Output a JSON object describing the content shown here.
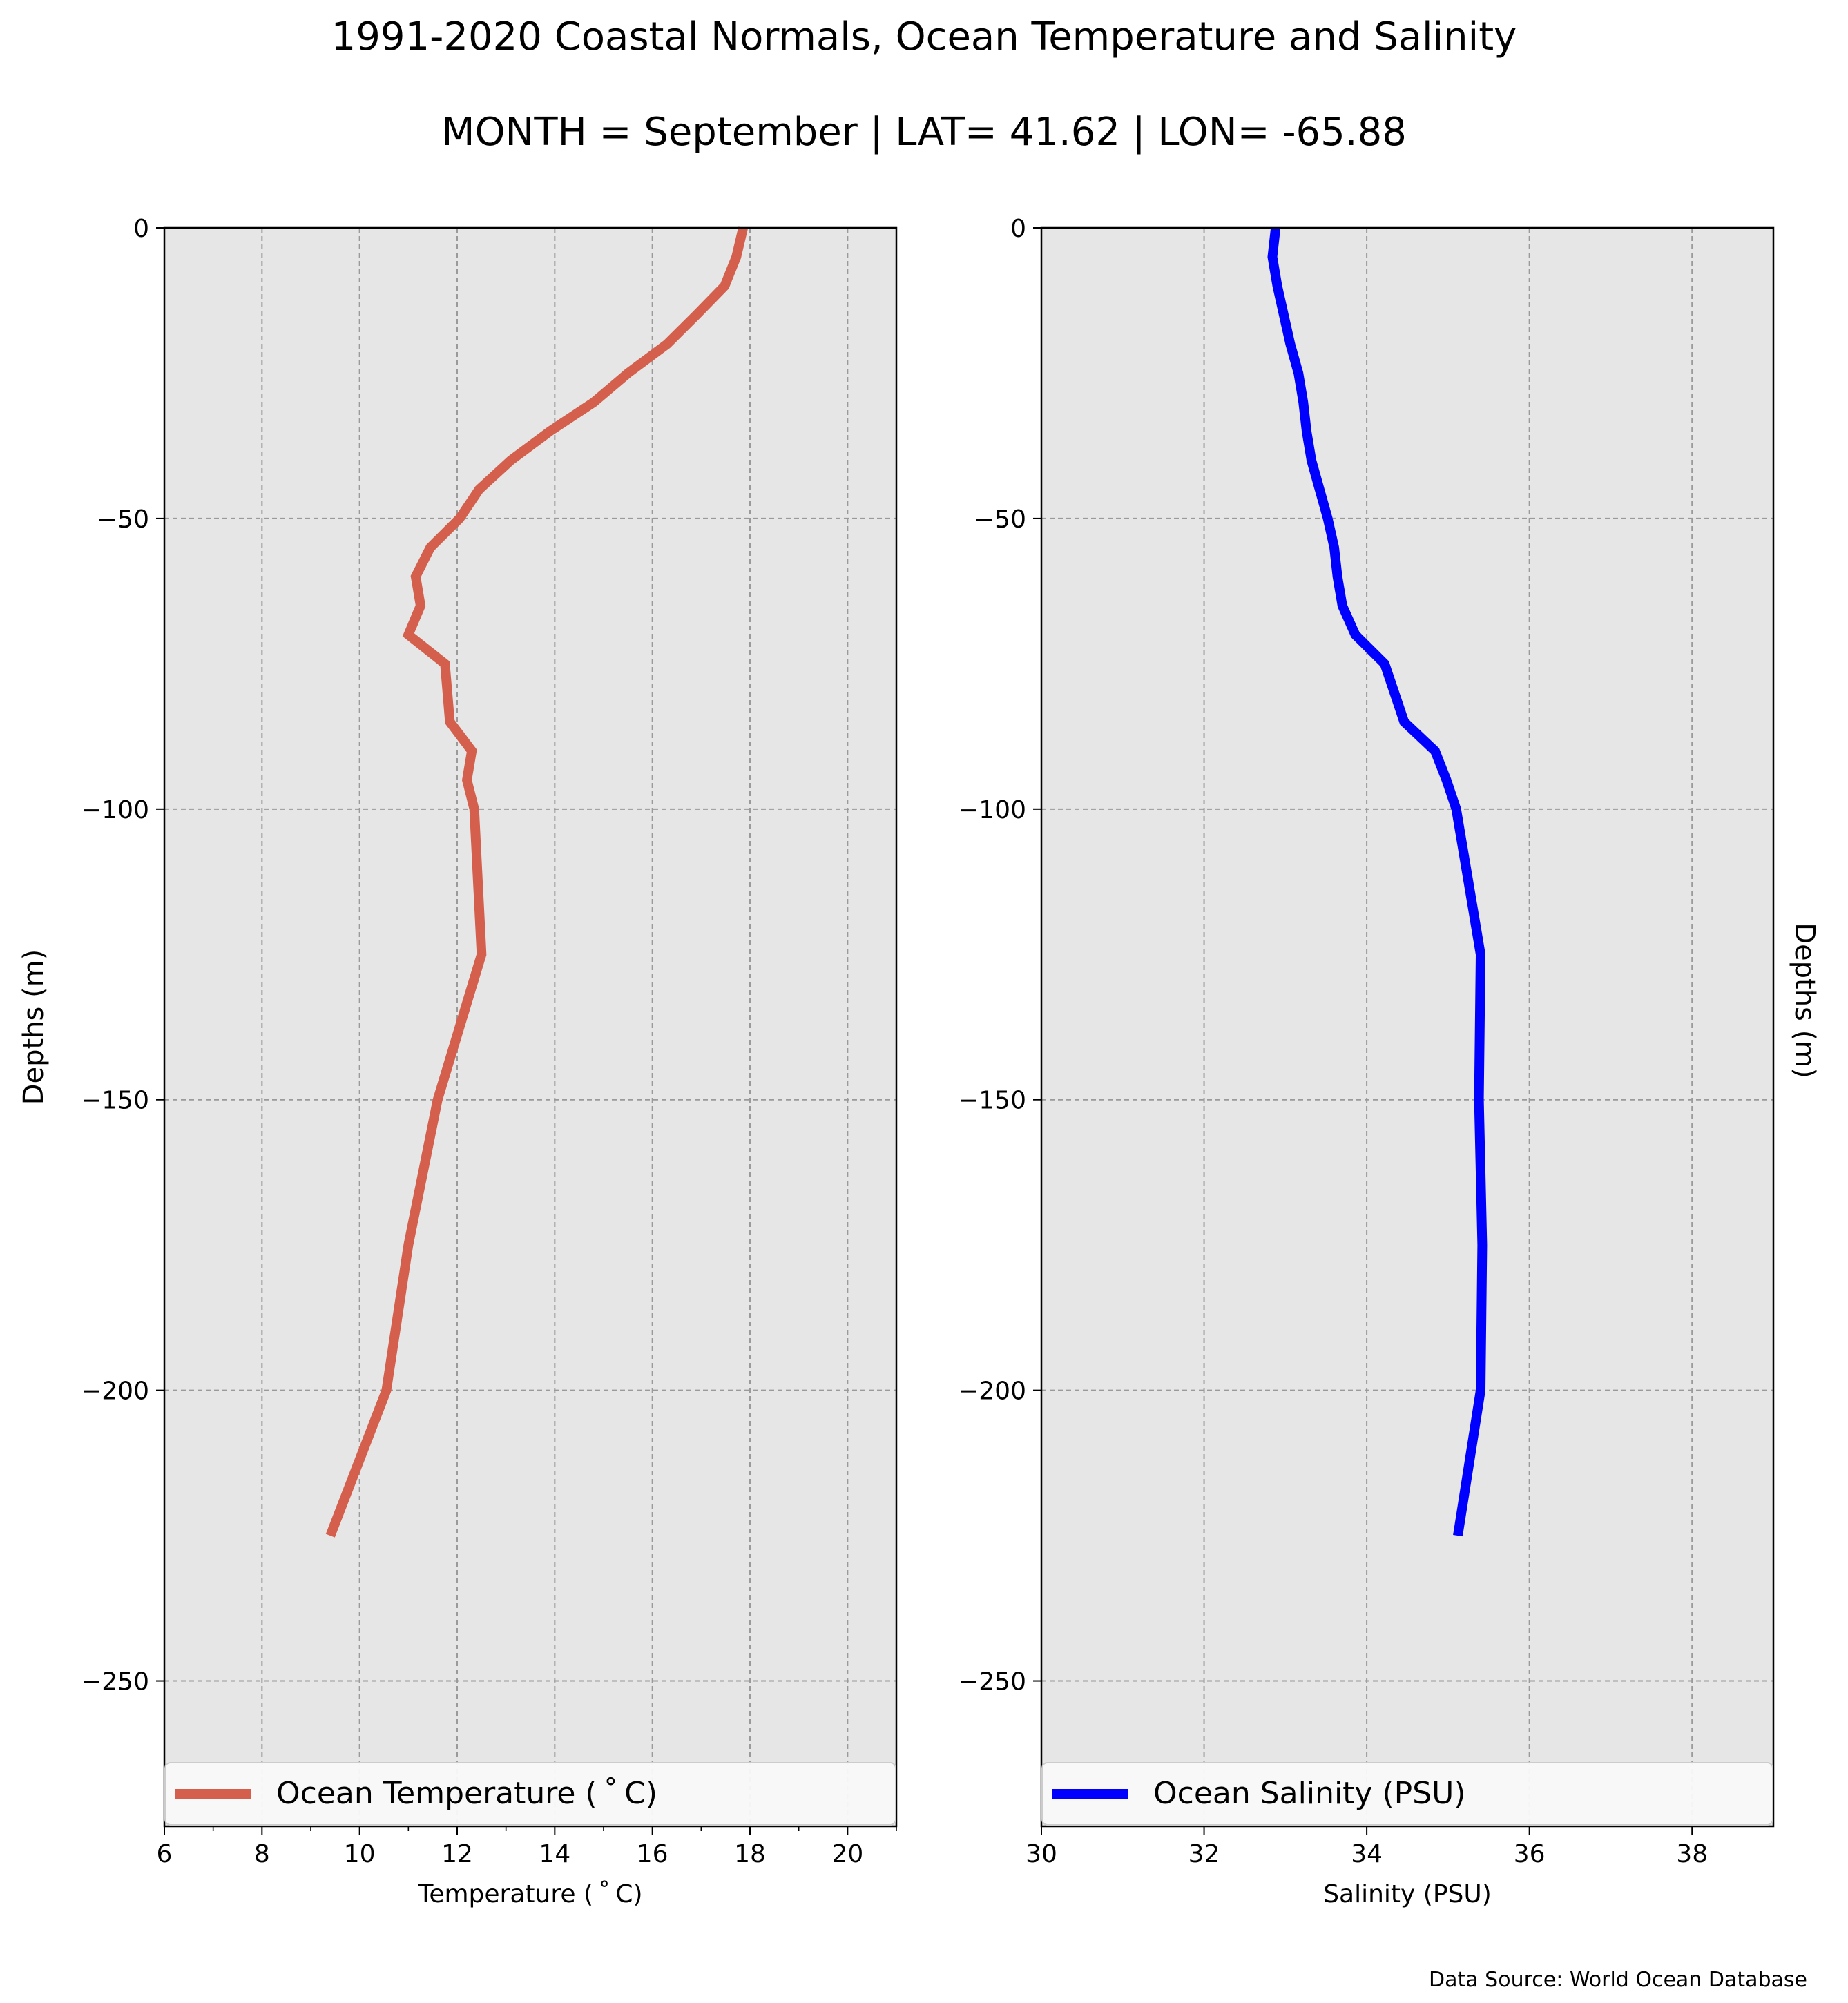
{
  "title": "1991-2020 Coastal Normals, Ocean Temperature and Salinity",
  "subtitle": "MONTH = September | LAT= 41.62 | LON= -65.88",
  "source_note": "Data Source: World Ocean Database",
  "colors": {
    "temperature": "#d35f4c",
    "salinity": "#0000ff",
    "axes_bg": "#e6e6e6",
    "grid": "#9a9a9a"
  },
  "chart_data": [
    {
      "type": "line",
      "xlabel": "Temperature ($^\\circ$C)",
      "xlabel_display": "Temperature ( ˚ C)",
      "ylabel": "Depths (m)",
      "xlim": [
        6,
        21
      ],
      "ylim": [
        -275,
        0
      ],
      "xticks": [
        6,
        8,
        10,
        12,
        14,
        16,
        18,
        20
      ],
      "yticks": [
        0,
        -50,
        -100,
        -150,
        -200,
        -250
      ],
      "ytick_labels": [
        "0",
        "−50",
        "−100",
        "−150",
        "−200",
        "−250"
      ],
      "grid": true,
      "legend_position": "bottom",
      "series": [
        {
          "name": "Ocean Temperature ( ˚ C)",
          "x": [
            17.86,
            17.72,
            17.48,
            16.9,
            16.3,
            15.5,
            14.8,
            13.9,
            13.1,
            12.45,
            12.05,
            11.45,
            11.15,
            11.25,
            11.0,
            11.75,
            11.8,
            11.85,
            12.3,
            12.2,
            12.35,
            12.5,
            11.6,
            11.0,
            10.55,
            9.4
          ],
          "y": [
            0,
            -5,
            -10,
            -15,
            -20,
            -25,
            -30,
            -35,
            -40,
            -45,
            -50,
            -55,
            -60,
            -65,
            -70,
            -75,
            -80,
            -85,
            -90,
            -95,
            -100,
            -125,
            -150,
            -175,
            -200,
            -225
          ]
        }
      ]
    },
    {
      "type": "line",
      "xlabel": "Salinity (PSU)",
      "ylabel": "Depths (m)",
      "xlim": [
        30,
        39
      ],
      "ylim": [
        -275,
        0
      ],
      "xticks": [
        30,
        32,
        34,
        36,
        38
      ],
      "yticks": [
        0,
        -50,
        -100,
        -150,
        -200,
        -250
      ],
      "ytick_labels": [
        "0",
        "−50",
        "−100",
        "−150",
        "−200",
        "−250"
      ],
      "grid": true,
      "legend_position": "bottom",
      "series": [
        {
          "name": "Ocean Salinity (PSU)",
          "x": [
            32.88,
            32.84,
            32.9,
            32.98,
            33.06,
            33.16,
            33.22,
            33.26,
            33.32,
            33.42,
            33.52,
            33.6,
            33.64,
            33.7,
            33.86,
            34.22,
            34.34,
            34.46,
            34.84,
            34.98,
            35.1,
            35.4,
            35.38,
            35.42,
            35.4,
            35.12
          ],
          "y": [
            0,
            -5,
            -10,
            -15,
            -20,
            -25,
            -30,
            -35,
            -40,
            -45,
            -50,
            -55,
            -60,
            -65,
            -70,
            -75,
            -80,
            -85,
            -90,
            -95,
            -100,
            -125,
            -150,
            -175,
            -200,
            -225
          ]
        }
      ]
    }
  ]
}
